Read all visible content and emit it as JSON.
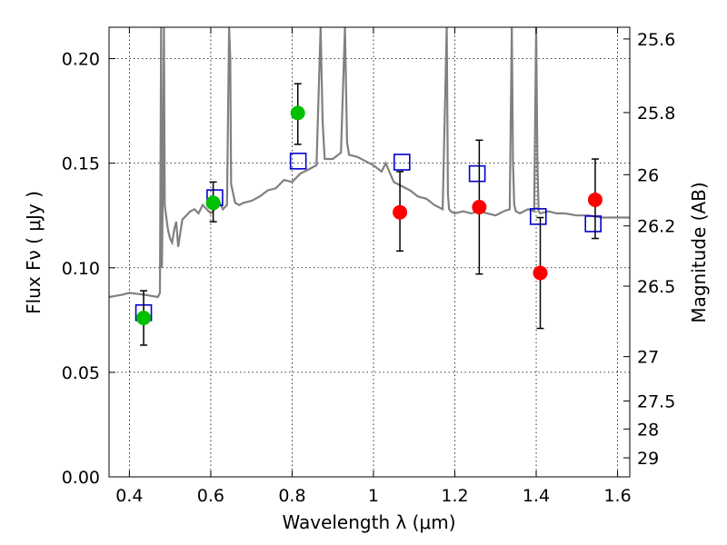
{
  "chart_data": {
    "type": "scatter",
    "title": "",
    "xlabel": "Wavelength  λ (μm)",
    "ylabel": "Flux  Fν  ( μJy )",
    "y2label": "Magnitude (AB)",
    "xlim": [
      0.35,
      1.63
    ],
    "ylim": [
      0.0,
      0.215
    ],
    "grid": true,
    "x_ticks": [
      0.4,
      0.6,
      0.8,
      1.0,
      1.2,
      1.4,
      1.6
    ],
    "x_tick_labels": [
      "0.4",
      "0.6",
      "0.8",
      "1",
      "1.2",
      "1.4",
      "1.6"
    ],
    "y_ticks": [
      0.0,
      0.05,
      0.1,
      0.15,
      0.2
    ],
    "y_tick_labels": [
      "0.00",
      "0.05",
      "0.10",
      "0.15",
      "0.20"
    ],
    "right_ticks": [
      {
        "flux": 0.2094,
        "label": "25.6"
      },
      {
        "flux": 0.1742,
        "label": "25.8"
      },
      {
        "flux": 0.1445,
        "label": "26"
      },
      {
        "flux": 0.12,
        "label": "26.2"
      },
      {
        "flux": 0.0912,
        "label": "26.5"
      },
      {
        "flux": 0.0575,
        "label": "27"
      },
      {
        "flux": 0.0363,
        "label": "27.5"
      },
      {
        "flux": 0.0229,
        "label": "28"
      },
      {
        "flux": 0.0091,
        "label": "29"
      }
    ],
    "colors": {
      "model": "#808080",
      "green": "#00c000",
      "red": "#ff0000",
      "box": "#0000cc",
      "errorbar": "#000000"
    },
    "series": [
      {
        "kind": "observed-green",
        "x": [
          0.435,
          0.606,
          0.814
        ],
        "y": [
          0.076,
          0.131,
          0.174
        ],
        "err_low": [
          0.063,
          0.122,
          0.159
        ],
        "err_high": [
          0.089,
          0.141,
          0.188
        ]
      },
      {
        "kind": "observed-red",
        "x": [
          1.065,
          1.26,
          1.41,
          1.545
        ],
        "y": [
          0.1265,
          0.129,
          0.0975,
          0.1325
        ],
        "err_low": [
          0.108,
          0.097,
          0.071,
          0.114
        ],
        "err_high": [
          0.146,
          0.161,
          0.124,
          0.152
        ]
      },
      {
        "kind": "model-photometry",
        "x": [
          0.435,
          0.61,
          0.815,
          1.07,
          1.255,
          1.405,
          1.54
        ],
        "y": [
          0.0785,
          0.1335,
          0.151,
          0.1505,
          0.145,
          0.1245,
          0.121
        ]
      },
      {
        "kind": "model-spectrum",
        "x": [
          0.35,
          0.38,
          0.4,
          0.44,
          0.47,
          0.475,
          0.478,
          0.48,
          0.483,
          0.485,
          0.487,
          0.49,
          0.495,
          0.5,
          0.505,
          0.51,
          0.515,
          0.52,
          0.53,
          0.54,
          0.55,
          0.56,
          0.57,
          0.58,
          0.59,
          0.6,
          0.61,
          0.62,
          0.63,
          0.64,
          0.645,
          0.648,
          0.65,
          0.66,
          0.67,
          0.68,
          0.7,
          0.72,
          0.74,
          0.76,
          0.78,
          0.8,
          0.82,
          0.84,
          0.86,
          0.87,
          0.875,
          0.88,
          0.9,
          0.92,
          0.93,
          0.935,
          0.94,
          0.96,
          0.98,
          1.0,
          1.02,
          1.03,
          1.05,
          1.07,
          1.09,
          1.11,
          1.13,
          1.15,
          1.17,
          1.18,
          1.183,
          1.186,
          1.19,
          1.2,
          1.22,
          1.24,
          1.26,
          1.28,
          1.3,
          1.32,
          1.335,
          1.34,
          1.343,
          1.346,
          1.35,
          1.36,
          1.38,
          1.395,
          1.4,
          1.403,
          1.406,
          1.41,
          1.43,
          1.45,
          1.47,
          1.5,
          1.53,
          1.56,
          1.6,
          1.63
        ],
        "y": [
          0.086,
          0.087,
          0.088,
          0.087,
          0.086,
          0.088,
          0.215,
          0.1,
          0.15,
          0.215,
          0.13,
          0.125,
          0.118,
          0.114,
          0.112,
          0.118,
          0.122,
          0.11,
          0.123,
          0.125,
          0.127,
          0.128,
          0.126,
          0.13,
          0.128,
          0.126,
          0.128,
          0.132,
          0.128,
          0.13,
          0.215,
          0.2,
          0.14,
          0.131,
          0.13,
          0.131,
          0.132,
          0.134,
          0.137,
          0.138,
          0.142,
          0.141,
          0.145,
          0.147,
          0.149,
          0.215,
          0.17,
          0.152,
          0.152,
          0.155,
          0.215,
          0.16,
          0.154,
          0.153,
          0.151,
          0.149,
          0.146,
          0.15,
          0.141,
          0.139,
          0.137,
          0.134,
          0.133,
          0.13,
          0.128,
          0.215,
          0.135,
          0.128,
          0.127,
          0.126,
          0.127,
          0.126,
          0.127,
          0.126,
          0.125,
          0.127,
          0.128,
          0.215,
          0.15,
          0.13,
          0.127,
          0.126,
          0.128,
          0.127,
          0.215,
          0.15,
          0.127,
          0.126,
          0.127,
          0.126,
          0.126,
          0.125,
          0.125,
          0.124,
          0.124,
          0.124
        ]
      }
    ]
  }
}
